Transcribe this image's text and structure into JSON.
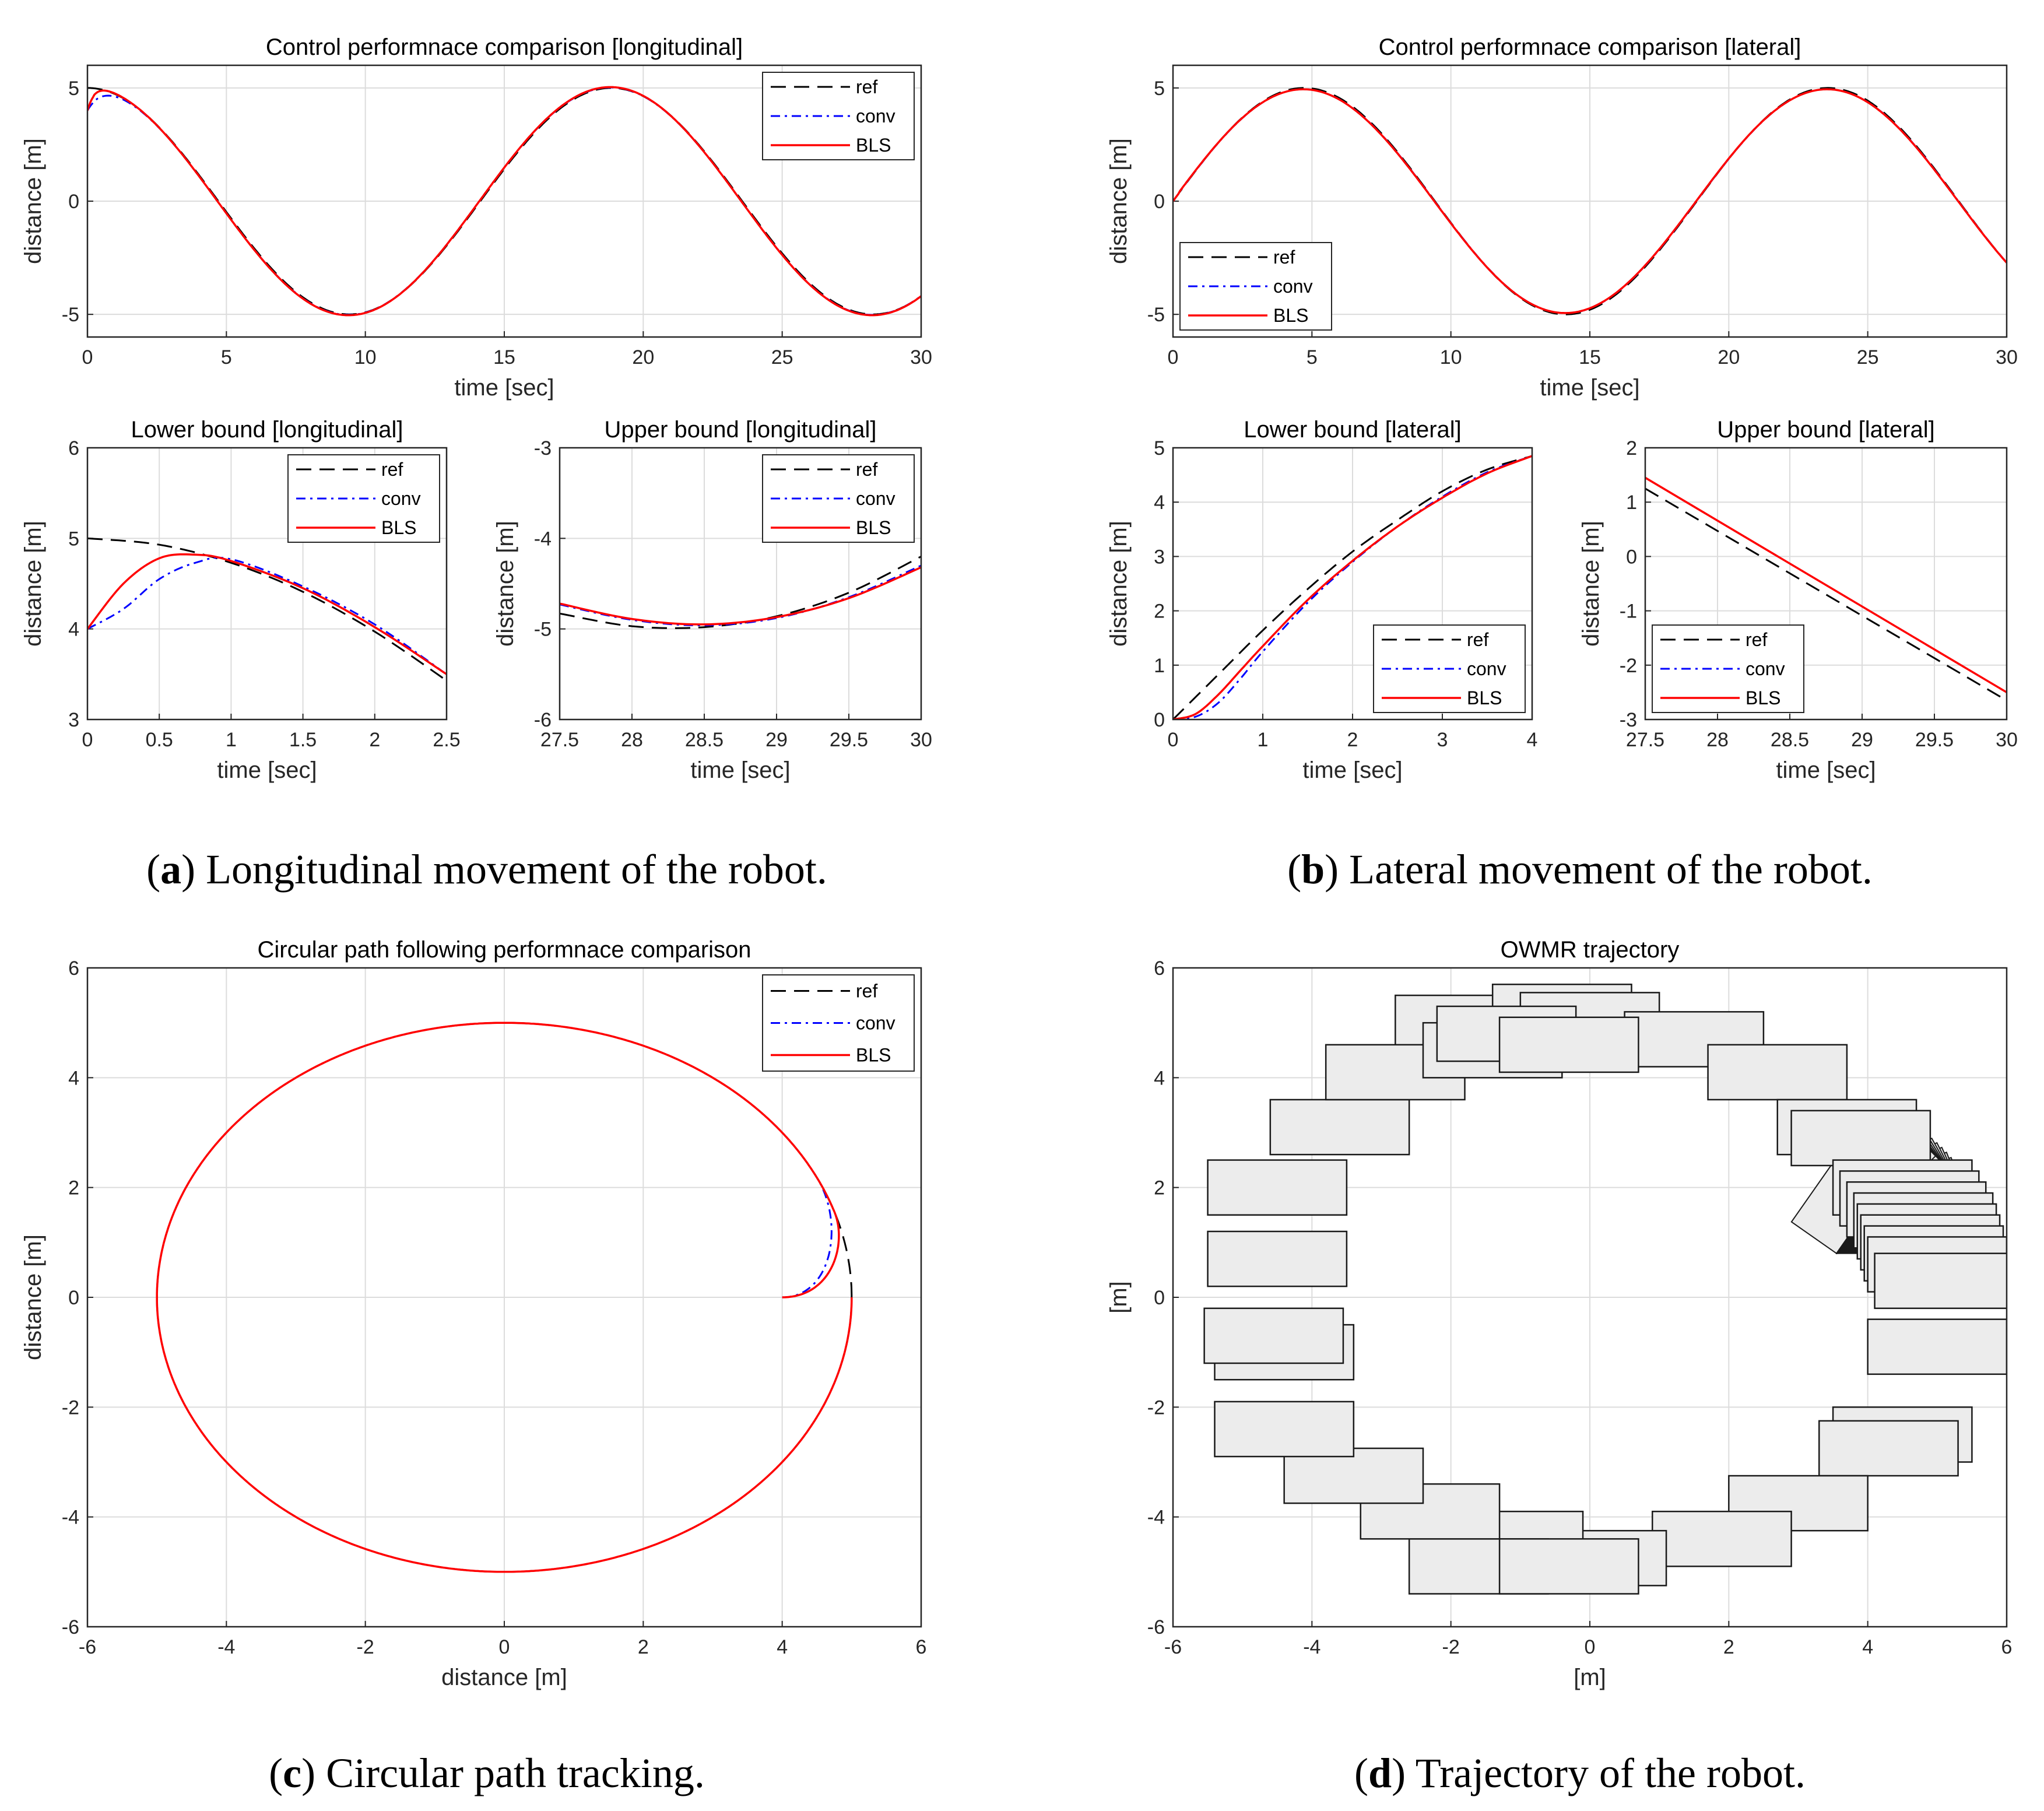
{
  "colors": {
    "ref": "#000000",
    "conv": "#0000ff",
    "bls": "#ff0000",
    "grid": "#dcdcdc",
    "box_fill": "#ececec"
  },
  "captions": {
    "a": {
      "letter": "a",
      "text": " Longitudinal movement of the robot."
    },
    "b": {
      "letter": "b",
      "text": " Lateral movement of the robot."
    },
    "c": {
      "letter": "c",
      "text": " Circular path tracking."
    },
    "d": {
      "letter": "d",
      "text": " Trajectory of the robot."
    }
  },
  "chart_data": [
    {
      "id": "a_main",
      "type": "line",
      "title": "Control performnace comparison [longitudinal]",
      "xlabel": "time [sec]",
      "ylabel": "distance [m]",
      "xlim": [
        0,
        30
      ],
      "ylim": [
        -6,
        6
      ],
      "xticks": [
        0,
        5,
        10,
        15,
        20,
        25,
        30
      ],
      "yticks": [
        -5,
        0,
        5
      ],
      "legend": [
        "ref",
        "conv",
        "BLS"
      ],
      "legend_position": "top-right",
      "series": [
        {
          "name": "ref",
          "function": "5cos(t/3)",
          "t_range": [
            0,
            30
          ]
        },
        {
          "name": "conv",
          "start_value": 4.0
        },
        {
          "name": "BLS",
          "start_value": 4.0
        }
      ]
    },
    {
      "id": "b_main",
      "type": "line",
      "title": "Control performnace comparison [lateral]",
      "xlabel": "time [sec]",
      "ylabel": "distance [m]",
      "xlim": [
        0,
        30
      ],
      "ylim": [
        -6,
        6
      ],
      "xticks": [
        0,
        5,
        10,
        15,
        20,
        25,
        30
      ],
      "yticks": [
        -5,
        0,
        5
      ],
      "legend": [
        "ref",
        "conv",
        "BLS"
      ],
      "legend_position": "bottom-left",
      "series": [
        {
          "name": "ref",
          "function": "5sin(t/3)",
          "t_range": [
            0,
            30
          ]
        },
        {
          "name": "conv",
          "start_value": 0.0
        },
        {
          "name": "BLS",
          "start_value": 0.0
        }
      ]
    },
    {
      "id": "a_lower",
      "type": "line",
      "title": "Lower bound [longitudinal]",
      "xlabel": "time [sec]",
      "ylabel": "distance [m]",
      "xlim": [
        0,
        2.5
      ],
      "ylim": [
        3,
        6
      ],
      "xticks": [
        0,
        0.5,
        1,
        1.5,
        2,
        2.5
      ],
      "yticks": [
        3,
        4,
        5,
        6
      ],
      "legend": [
        "ref",
        "conv",
        "BLS"
      ],
      "legend_position": "top-right",
      "series": [
        {
          "name": "ref",
          "x": [
            0,
            0.5,
            1,
            1.5,
            2,
            2.5
          ],
          "y": [
            5.0,
            4.93,
            4.73,
            4.41,
            3.97,
            3.43
          ]
        },
        {
          "name": "conv",
          "x": [
            0,
            0.25,
            0.5,
            0.75,
            1,
            1.5,
            2,
            2.5
          ],
          "y": [
            4.0,
            4.22,
            4.55,
            4.73,
            4.77,
            4.47,
            4.05,
            3.5
          ]
        },
        {
          "name": "BLS",
          "x": [
            0,
            0.25,
            0.5,
            0.75,
            1,
            1.5,
            2,
            2.5
          ],
          "y": [
            4.0,
            4.5,
            4.78,
            4.82,
            4.75,
            4.45,
            4.02,
            3.5
          ]
        }
      ]
    },
    {
      "id": "a_upper",
      "type": "line",
      "title": "Upper bound [longitudinal]",
      "xlabel": "time [sec]",
      "ylabel": "distance [m]",
      "xlim": [
        27.5,
        30
      ],
      "ylim": [
        -6,
        -3
      ],
      "xticks": [
        27.5,
        28,
        28.5,
        29,
        29.5,
        30
      ],
      "yticks": [
        -6,
        -5,
        -4,
        -3
      ],
      "legend": [
        "ref",
        "conv",
        "BLS"
      ],
      "legend_position": "top-right",
      "series": [
        {
          "name": "ref",
          "x": [
            27.5,
            28,
            28.5,
            29,
            29.5,
            30
          ],
          "y": [
            -4.83,
            -4.97,
            -4.98,
            -4.86,
            -4.6,
            -4.2
          ]
        },
        {
          "name": "conv",
          "x": [
            27.5,
            28,
            28.5,
            29,
            29.5,
            30
          ],
          "y": [
            -4.73,
            -4.9,
            -4.96,
            -4.88,
            -4.65,
            -4.3
          ]
        },
        {
          "name": "BLS",
          "x": [
            27.5,
            28,
            28.5,
            29,
            29.5,
            30
          ],
          "y": [
            -4.72,
            -4.89,
            -4.95,
            -4.87,
            -4.66,
            -4.32
          ]
        }
      ]
    },
    {
      "id": "b_lower",
      "type": "line",
      "title": "Lower bound [lateral]",
      "xlabel": "time [sec]",
      "ylabel": "distance [m]",
      "xlim": [
        0,
        4
      ],
      "ylim": [
        0,
        5
      ],
      "xticks": [
        0,
        1,
        2,
        3,
        4
      ],
      "yticks": [
        0,
        1,
        2,
        3,
        4,
        5
      ],
      "legend": [
        "ref",
        "conv",
        "BLS"
      ],
      "legend_position": "bottom-right",
      "series": [
        {
          "name": "ref",
          "x": [
            0,
            0.5,
            1,
            1.5,
            2,
            2.5,
            3,
            3.5,
            4
          ],
          "y": [
            0.0,
            0.82,
            1.64,
            2.4,
            3.09,
            3.67,
            4.2,
            4.6,
            4.85
          ]
        },
        {
          "name": "conv",
          "x": [
            0,
            0.25,
            0.5,
            0.75,
            1,
            1.5,
            2,
            2.5,
            3,
            3.5,
            4
          ],
          "y": [
            0.0,
            0.05,
            0.3,
            0.75,
            1.25,
            2.15,
            2.9,
            3.55,
            4.1,
            4.55,
            4.85
          ]
        },
        {
          "name": "BLS",
          "x": [
            0,
            0.25,
            0.5,
            0.75,
            1,
            1.5,
            2,
            2.5,
            3,
            3.5,
            4
          ],
          "y": [
            0.0,
            0.1,
            0.45,
            0.9,
            1.35,
            2.2,
            2.92,
            3.55,
            4.08,
            4.53,
            4.85
          ]
        }
      ]
    },
    {
      "id": "b_upper",
      "type": "line",
      "title": "Upper bound [lateral]",
      "xlabel": "time [sec]",
      "ylabel": "distance [m]",
      "xlim": [
        27.5,
        30
      ],
      "ylim": [
        -3,
        2
      ],
      "xticks": [
        27.5,
        28,
        28.5,
        29,
        29.5,
        30
      ],
      "yticks": [
        -3,
        -2,
        -1,
        0,
        1,
        2
      ],
      "legend": [
        "ref",
        "conv",
        "BLS"
      ],
      "legend_position": "bottom-left",
      "series": [
        {
          "name": "ref",
          "x": [
            27.5,
            30
          ],
          "y": [
            1.25,
            -2.65
          ]
        },
        {
          "name": "conv",
          "x": [
            27.5,
            30
          ],
          "y": [
            1.45,
            -2.5
          ]
        },
        {
          "name": "BLS",
          "x": [
            27.5,
            30
          ],
          "y": [
            1.45,
            -2.5
          ]
        }
      ]
    },
    {
      "id": "c_circle",
      "type": "line",
      "title": "Circular path following performnace comparison",
      "xlabel": "distance [m]",
      "ylabel": "distance [m]",
      "xlim": [
        -6,
        6
      ],
      "ylim": [
        -6,
        6
      ],
      "xticks": [
        -6,
        -4,
        -2,
        0,
        2,
        4,
        6
      ],
      "yticks": [
        -6,
        -4,
        -2,
        0,
        2,
        4,
        6
      ],
      "legend": [
        "ref",
        "conv",
        "BLS"
      ],
      "legend_position": "top-right",
      "series": [
        {
          "name": "ref",
          "shape": "circle",
          "center": [
            0,
            0
          ],
          "radius": 5
        },
        {
          "name": "conv",
          "start_point": [
            4,
            0
          ]
        },
        {
          "name": "BLS",
          "start_point": [
            4,
            0
          ]
        }
      ]
    },
    {
      "id": "d_trajectory",
      "type": "scatter",
      "title": "OWMR trajectory",
      "xlabel": "[m]",
      "ylabel": "[m]",
      "xlim": [
        -6,
        6
      ],
      "ylim": [
        -6,
        6
      ],
      "xticks": [
        -6,
        -4,
        -2,
        0,
        2,
        4,
        6
      ],
      "yticks": [
        -6,
        -4,
        -2,
        0,
        2,
        4,
        6
      ],
      "robot_box_size_m": [
        2,
        1
      ],
      "robot_centers": [
        [
          -1.8,
          5.0
        ],
        [
          -0.4,
          5.2
        ],
        [
          0.0,
          5.05
        ],
        [
          1.5,
          4.7
        ],
        [
          2.7,
          4.1
        ],
        [
          3.7,
          3.1
        ],
        [
          3.9,
          2.9
        ],
        [
          4.5,
          2.0
        ],
        [
          4.6,
          1.8
        ],
        [
          4.7,
          1.6
        ],
        [
          4.8,
          1.4
        ],
        [
          4.85,
          1.2
        ],
        [
          4.9,
          1.0
        ],
        [
          4.95,
          0.8
        ],
        [
          5.0,
          0.6
        ],
        [
          5.1,
          0.3
        ],
        [
          5.0,
          -0.9
        ],
        [
          4.5,
          -2.5
        ],
        [
          4.3,
          -2.75
        ],
        [
          3.0,
          -3.75
        ],
        [
          1.9,
          -4.4
        ],
        [
          0.1,
          -4.75
        ],
        [
          -1.1,
          -4.4
        ],
        [
          -1.6,
          -4.9
        ],
        [
          -0.3,
          -4.9
        ],
        [
          -2.3,
          -3.9
        ],
        [
          -3.4,
          -3.25
        ],
        [
          -4.4,
          -2.4
        ],
        [
          -4.4,
          -1.0
        ],
        [
          -4.55,
          -0.7
        ],
        [
          -4.5,
          0.7
        ],
        [
          -4.5,
          2.0
        ],
        [
          -3.6,
          3.1
        ],
        [
          -2.8,
          4.1
        ],
        [
          -1.4,
          4.5
        ],
        [
          -1.2,
          4.8
        ],
        [
          -0.3,
          4.6
        ]
      ],
      "pivot_point": [
        3.55,
        0.8
      ],
      "rotating_boxes": 22
    }
  ]
}
